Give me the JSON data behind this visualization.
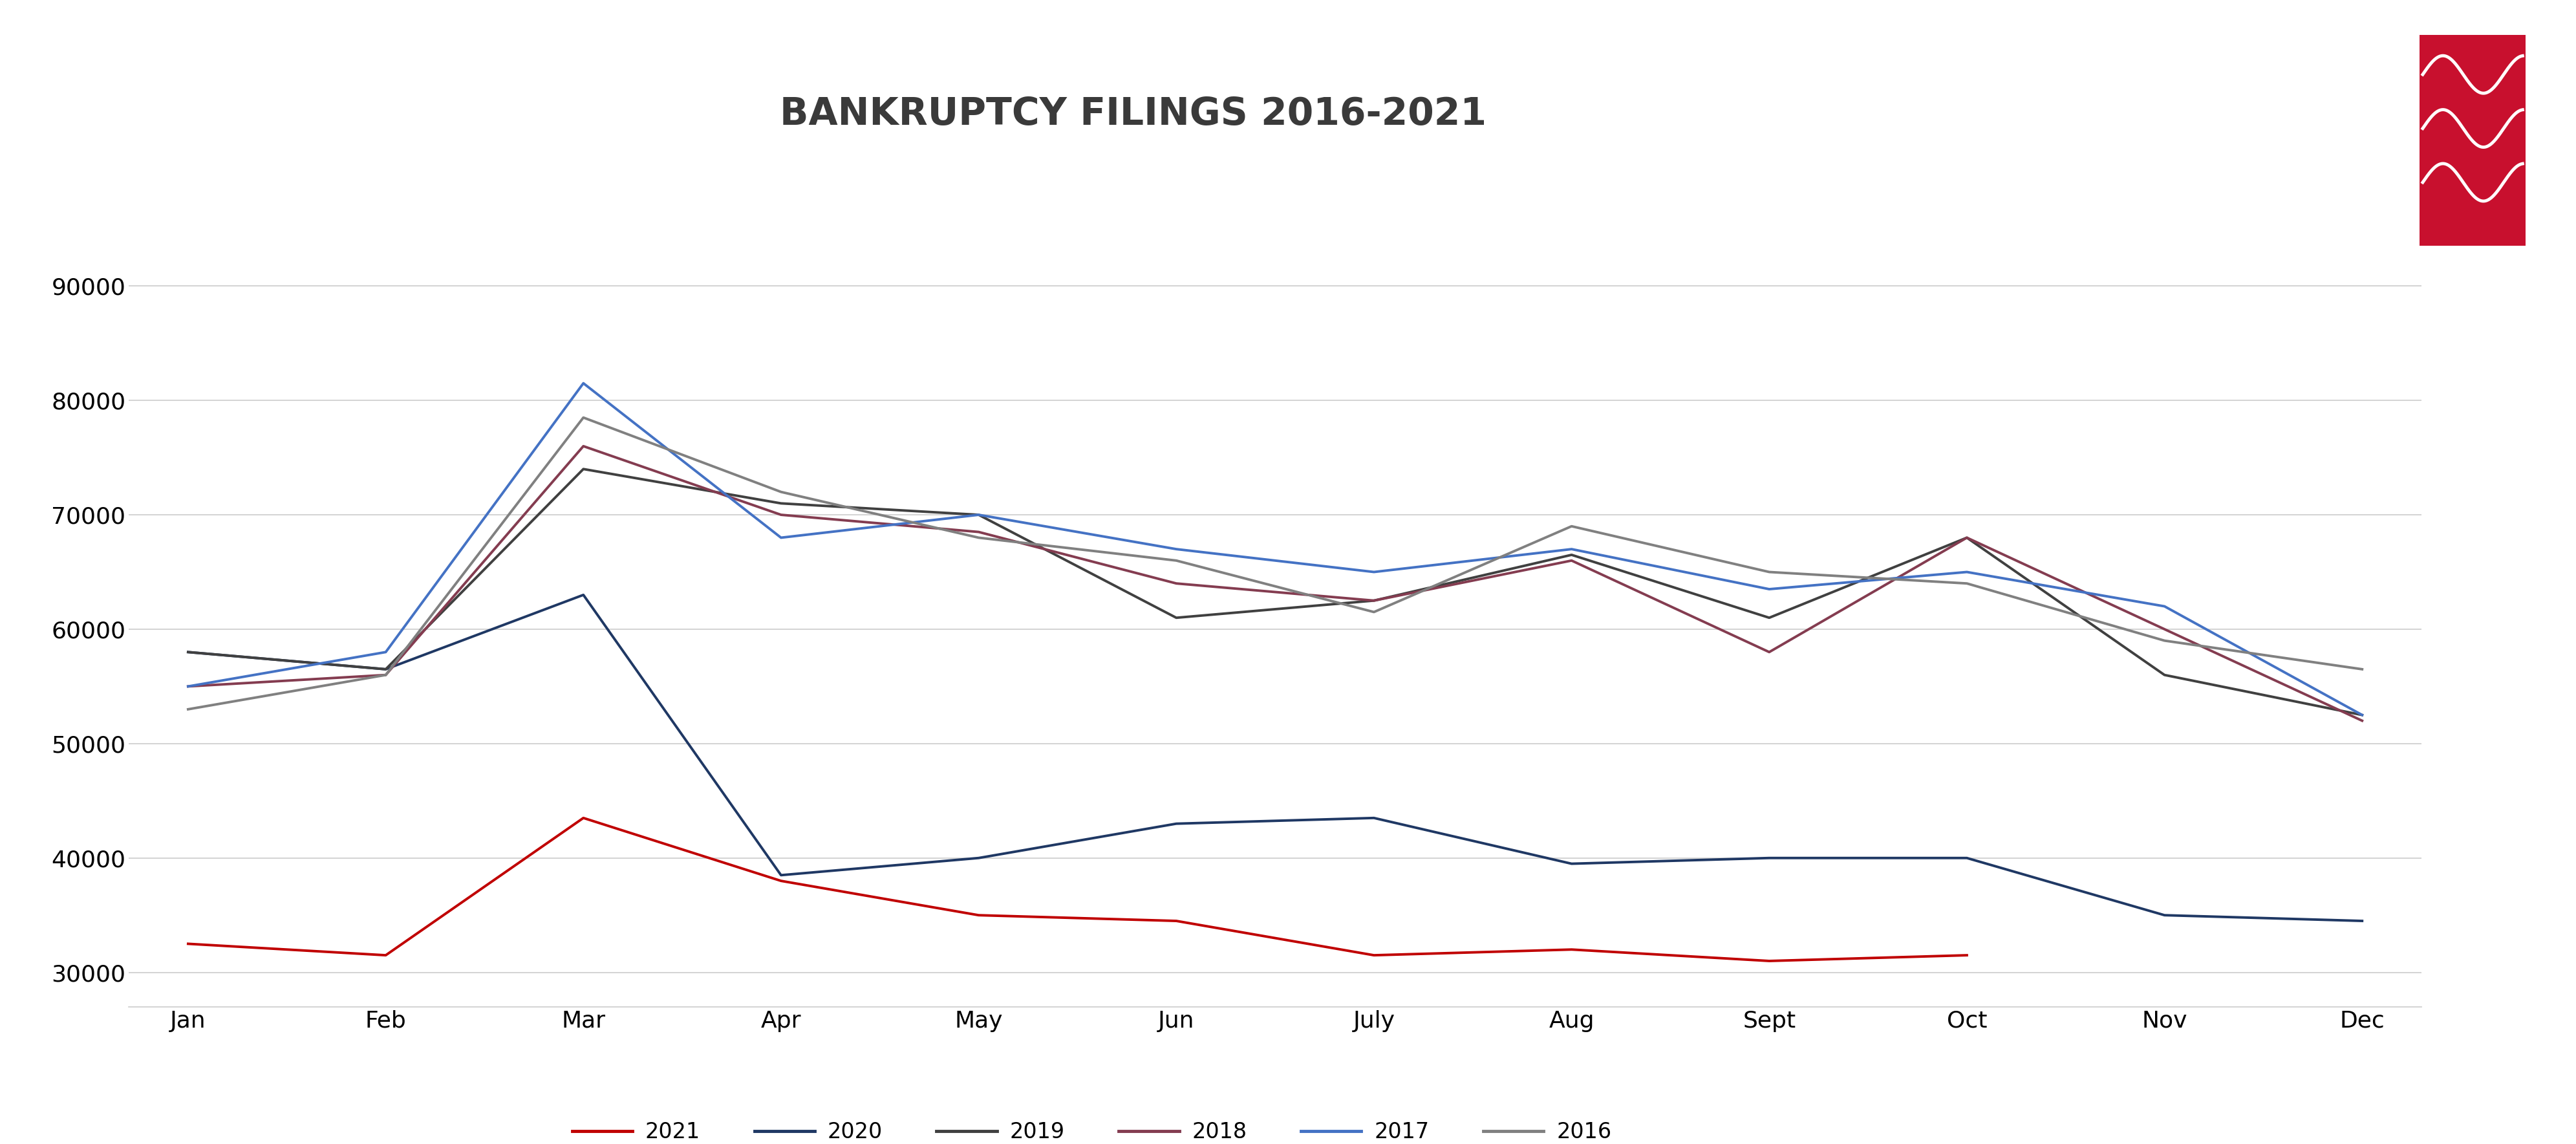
{
  "title": "BANKRUPTCY FILINGS 2016-2021",
  "months": [
    "Jan",
    "Feb",
    "Mar",
    "Apr",
    "May",
    "Jun",
    "July",
    "Aug",
    "Sept",
    "Oct",
    "Nov",
    "Dec"
  ],
  "series": {
    "2021": {
      "values": [
        32500,
        31500,
        43500,
        38000,
        35000,
        34500,
        31500,
        32000,
        31000,
        31500,
        null,
        null
      ],
      "color": "#c00000",
      "linewidth": 2.8
    },
    "2020": {
      "values": [
        58000,
        56500,
        63000,
        38500,
        40000,
        43000,
        43500,
        39500,
        40000,
        40000,
        35000,
        34500
      ],
      "color": "#1f3864",
      "linewidth": 2.8
    },
    "2019": {
      "values": [
        58000,
        56500,
        74000,
        71000,
        70000,
        61000,
        62500,
        66500,
        61000,
        68000,
        56000,
        52500
      ],
      "color": "#404040",
      "linewidth": 2.8
    },
    "2018": {
      "values": [
        55000,
        56000,
        76000,
        70000,
        68500,
        64000,
        62500,
        66000,
        58000,
        68000,
        60000,
        52000
      ],
      "color": "#843c50",
      "linewidth": 2.8
    },
    "2017": {
      "values": [
        55000,
        58000,
        81500,
        68000,
        70000,
        67000,
        65000,
        67000,
        63500,
        65000,
        62000,
        52500
      ],
      "color": "#4472c4",
      "linewidth": 2.8
    },
    "2016": {
      "values": [
        53000,
        56000,
        78500,
        72000,
        68000,
        66000,
        61500,
        69000,
        65000,
        64000,
        59000,
        56500
      ],
      "color": "#808080",
      "linewidth": 2.8
    }
  },
  "legend_order": [
    "2021",
    "2020",
    "2019",
    "2018",
    "2017",
    "2016"
  ],
  "ylim": [
    27000,
    95000
  ],
  "yticks": [
    30000,
    40000,
    50000,
    60000,
    70000,
    80000,
    90000
  ],
  "background_color": "#ffffff",
  "grid_color": "#cccccc",
  "title_fontsize": 42,
  "tick_fontsize": 26,
  "legend_fontsize": 24,
  "ais_text_color": "#1a3a6b",
  "ais_red_color": "#c8102e"
}
